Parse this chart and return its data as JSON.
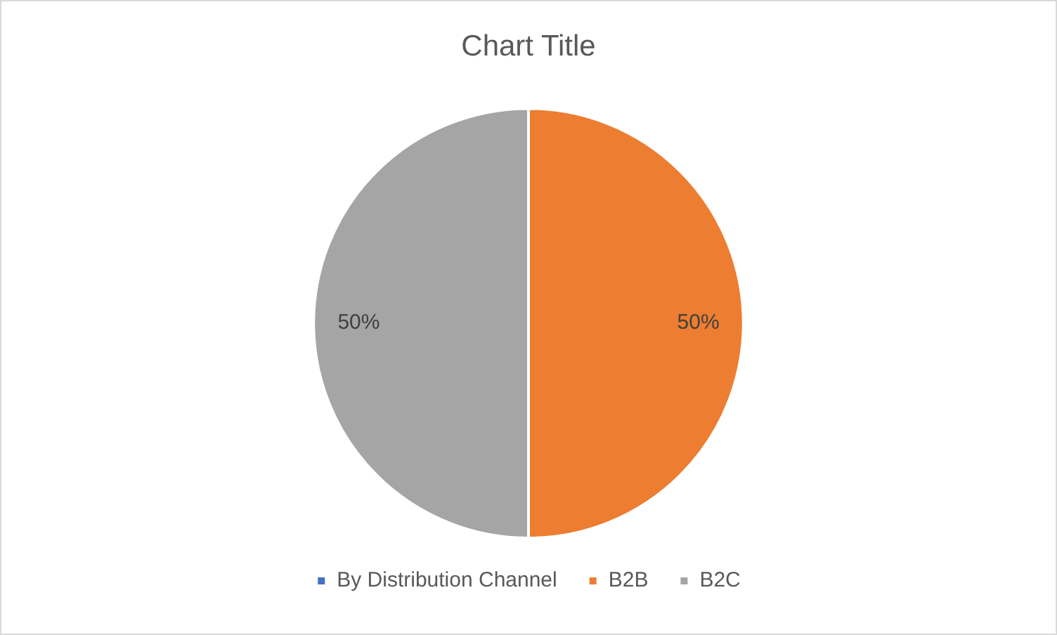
{
  "chart_data": {
    "type": "pie",
    "title": "Chart Title",
    "categories": [
      "By Distribution Channel",
      "B2B",
      "B2C"
    ],
    "values": [
      0,
      50,
      50
    ],
    "colors": [
      "#4472c4",
      "#ed7d31",
      "#a5a5a5"
    ],
    "value_labels": [
      null,
      "50%",
      "50%"
    ],
    "legend": "bottom"
  }
}
